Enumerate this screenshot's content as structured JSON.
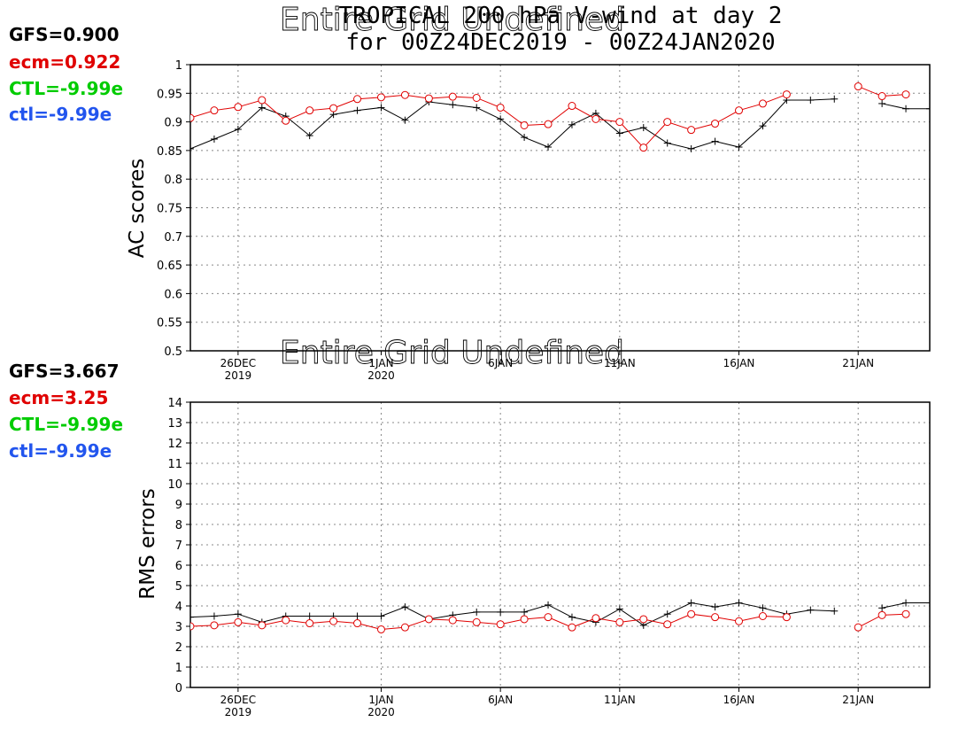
{
  "title": {
    "line1": "TROPICAL 200 hPa V-wind at day 2",
    "line2": "for 00Z24DEC2019 - 00Z24JAN2020"
  },
  "colors": {
    "gfs": "#000000",
    "ecm": "#e00000",
    "ctl_upper": "#00cc00",
    "ctl_lower": "#2255ee"
  },
  "x_axis": {
    "ticks": [
      {
        "day": 2,
        "label": "26DEC",
        "sub": "2019"
      },
      {
        "day": 8,
        "label": "1JAN",
        "sub": "2020"
      },
      {
        "day": 13,
        "label": "6JAN",
        "sub": ""
      },
      {
        "day": 18,
        "label": "11JAN",
        "sub": ""
      },
      {
        "day": 23,
        "label": "16JAN",
        "sub": ""
      },
      {
        "day": 28,
        "label": "21JAN",
        "sub": ""
      }
    ]
  },
  "chart_data": [
    {
      "type": "line",
      "ylabel": "AC scores",
      "overlay_text": "Entire Grid Undefined",
      "ylim": [
        0.5,
        1
      ],
      "yticks": [
        "0.5",
        "0.55",
        "0.6",
        "0.65",
        "0.7",
        "0.75",
        "0.8",
        "0.85",
        "0.9",
        "0.95",
        "1"
      ],
      "xlim": [
        0,
        31
      ],
      "grid": true,
      "stats": {
        "gfs": "GFS=0.900",
        "ecm": "ecm=0.922",
        "ctl_upper": "CTL=-9.99e",
        "ctl_lower": "ctl=-9.99e"
      },
      "series": [
        {
          "name": "GFS",
          "color": "#000000",
          "marker": "plus",
          "x": [
            0,
            1,
            2,
            3,
            4,
            5,
            6,
            7,
            8,
            9,
            10,
            11,
            12,
            13,
            14,
            15,
            16,
            17,
            18,
            19,
            20,
            21,
            22,
            23,
            24,
            25,
            26,
            27,
            28,
            29,
            30,
            31
          ],
          "y": [
            0.853,
            0.87,
            0.887,
            0.925,
            0.91,
            0.876,
            0.913,
            0.92,
            0.925,
            0.903,
            0.935,
            0.93,
            0.925,
            0.905,
            0.873,
            0.856,
            0.895,
            0.915,
            0.88,
            0.89,
            0.863,
            0.853,
            0.866,
            0.856,
            0.893,
            0.938,
            0.938,
            0.94,
            null,
            0.932,
            0.923,
            0.923
          ]
        },
        {
          "name": "ecm",
          "color": "#e00000",
          "marker": "circle",
          "x": [
            0,
            1,
            2,
            3,
            4,
            5,
            6,
            7,
            8,
            9,
            10,
            11,
            12,
            13,
            14,
            15,
            16,
            17,
            18,
            19,
            20,
            21,
            22,
            23,
            24,
            25,
            26,
            27,
            28,
            29,
            30
          ],
          "y": [
            0.907,
            0.92,
            0.926,
            0.938,
            0.902,
            0.92,
            0.924,
            0.94,
            0.943,
            0.947,
            0.941,
            0.944,
            0.942,
            0.925,
            0.894,
            0.896,
            0.928,
            0.905,
            0.9,
            0.855,
            0.9,
            0.886,
            0.897,
            0.92,
            0.932,
            0.948,
            null,
            null,
            0.962,
            0.945,
            0.948
          ]
        }
      ]
    },
    {
      "type": "line",
      "ylabel": "RMS errors",
      "overlay_text": "Entire Grid Undefined",
      "ylim": [
        0,
        14
      ],
      "yticks": [
        "0",
        "1",
        "2",
        "3",
        "4",
        "5",
        "6",
        "7",
        "8",
        "9",
        "10",
        "11",
        "12",
        "13",
        "14"
      ],
      "xlim": [
        0,
        31
      ],
      "grid": true,
      "stats": {
        "gfs": "GFS=3.667",
        "ecm": "ecm=3.25",
        "ctl_upper": "CTL=-9.99e",
        "ctl_lower": "ctl=-9.99e"
      },
      "series": [
        {
          "name": "GFS",
          "color": "#000000",
          "marker": "plus",
          "x": [
            0,
            1,
            2,
            3,
            4,
            5,
            6,
            7,
            8,
            9,
            10,
            11,
            12,
            13,
            14,
            15,
            16,
            17,
            18,
            19,
            20,
            21,
            22,
            23,
            24,
            25,
            26,
            27,
            28,
            29,
            30,
            31
          ],
          "y": [
            3.45,
            3.5,
            3.6,
            3.2,
            3.5,
            3.5,
            3.5,
            3.5,
            3.5,
            3.95,
            3.35,
            3.55,
            3.7,
            3.7,
            3.7,
            4.05,
            3.45,
            3.2,
            3.85,
            3.05,
            3.6,
            4.15,
            3.95,
            4.15,
            3.9,
            3.6,
            3.8,
            3.75,
            null,
            3.9,
            4.15,
            4.15
          ]
        },
        {
          "name": "ecm",
          "color": "#e00000",
          "marker": "circle",
          "x": [
            0,
            1,
            2,
            3,
            4,
            5,
            6,
            7,
            8,
            9,
            10,
            11,
            12,
            13,
            14,
            15,
            16,
            17,
            18,
            19,
            20,
            21,
            22,
            23,
            24,
            25,
            26,
            27,
            28,
            29,
            30
          ],
          "y": [
            3.0,
            3.05,
            3.2,
            3.05,
            3.3,
            3.15,
            3.25,
            3.15,
            2.85,
            2.95,
            3.35,
            3.3,
            3.2,
            3.1,
            3.35,
            3.45,
            2.95,
            3.4,
            3.2,
            3.35,
            3.1,
            3.6,
            3.45,
            3.25,
            3.5,
            3.45,
            null,
            null,
            2.95,
            3.55,
            3.6
          ]
        }
      ]
    }
  ]
}
